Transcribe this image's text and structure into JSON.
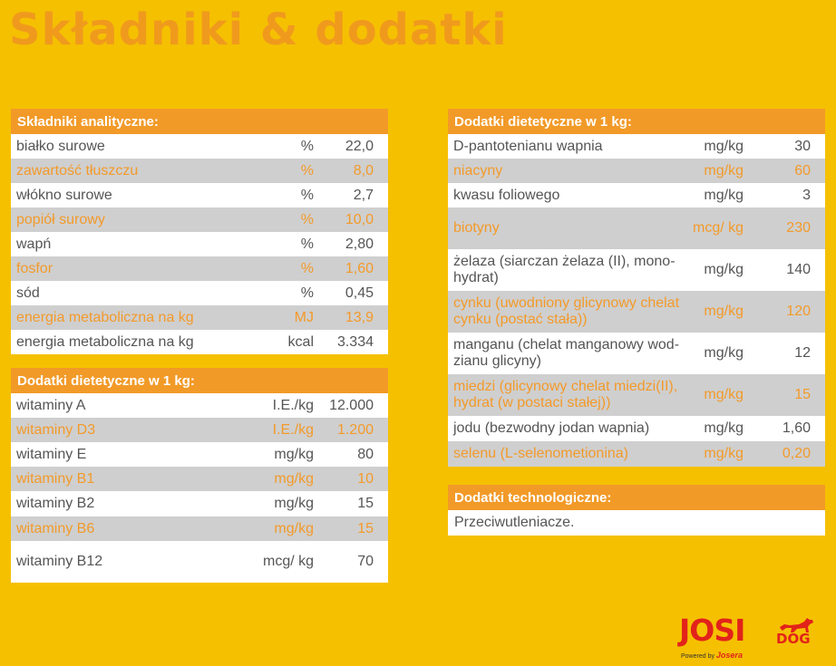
{
  "title": "Składniki & dodatki",
  "analytical": {
    "heading": "Składniki analityczne:",
    "rows": [
      {
        "name": "białko surowe",
        "unit": "%",
        "value": "22,0"
      },
      {
        "name": "zawartość tłuszczu",
        "unit": "%",
        "value": "8,0"
      },
      {
        "name": "włókno surowe",
        "unit": "%",
        "value": "2,7"
      },
      {
        "name": "popiół surowy",
        "unit": "%",
        "value": "10,0"
      },
      {
        "name": "wapń",
        "unit": "%",
        "value": "2,80"
      },
      {
        "name": "fosfor",
        "unit": "%",
        "value": "1,60"
      },
      {
        "name": "sód",
        "unit": "%",
        "value": "0,45"
      },
      {
        "name": "energia metaboliczna na kg",
        "unit": "MJ",
        "value": "13,9"
      },
      {
        "name": "energia metaboliczna na kg",
        "unit": "kcal",
        "value": "3.334"
      }
    ]
  },
  "vitamins": {
    "heading": "Dodatki dietetyczne w 1 kg:",
    "rows": [
      {
        "name": "witaminy A",
        "unit": "I.E./kg",
        "value": "12.000"
      },
      {
        "name": "witaminy D3",
        "unit": "I.E./kg",
        "value": "1.200"
      },
      {
        "name": "witaminy E",
        "unit": "mg/kg",
        "value": "80"
      },
      {
        "name": "witaminy B1",
        "unit": "mg/kg",
        "value": "10"
      },
      {
        "name": "witaminy B2",
        "unit": "mg/kg",
        "value": "15"
      },
      {
        "name": "witaminy B6",
        "unit": "mg/kg",
        "value": "15"
      },
      {
        "name": "witaminy B12",
        "unit": "mcg/ kg",
        "value": "70"
      }
    ]
  },
  "minerals": {
    "heading": "Dodatki dietetyczne w 1 kg:",
    "rows": [
      {
        "name": "D-pantotenianu wapnia",
        "unit": "mg/kg",
        "value": "30"
      },
      {
        "name": "niacyny",
        "unit": "mg/kg",
        "value": "60"
      },
      {
        "name": "kwasu foliowego",
        "unit": "mg/kg",
        "value": "3"
      },
      {
        "name": "biotyny",
        "unit": "mcg/ kg",
        "value": "230"
      },
      {
        "name": "żelaza (siarczan żelaza (II), mono-hydrat)",
        "unit": "mg/kg",
        "value": "140"
      },
      {
        "name": "cynku (uwodniony glicynowy chelat cynku (postać stała))",
        "unit": "mg/kg",
        "value": "120"
      },
      {
        "name": "manganu (chelat manganowy wod-zianu glicyny)",
        "unit": "mg/kg",
        "value": "12"
      },
      {
        "name": "miedzi (glicynowy chelat miedzi(II), hydrat (w postaci stałej))",
        "unit": "mg/kg",
        "value": "15"
      },
      {
        "name": "jodu (bezwodny jodan wapnia)",
        "unit": "mg/kg",
        "value": "1,60"
      },
      {
        "name": "selenu (L-selenometionina)",
        "unit": "mg/kg",
        "value": "0,20"
      }
    ]
  },
  "technological": {
    "heading": "Dodatki technologiczne:",
    "text": "Przeciwutleniacze."
  },
  "logo": {
    "brand": "JOSI",
    "sub": "DOG",
    "powered": "Powered by",
    "maker": "Josera"
  },
  "colors": {
    "background": "#f5c000",
    "header": "#f29a28",
    "alt_row": "#cfcfcf",
    "title": "#f09a1d",
    "logo": "#e2231a"
  }
}
